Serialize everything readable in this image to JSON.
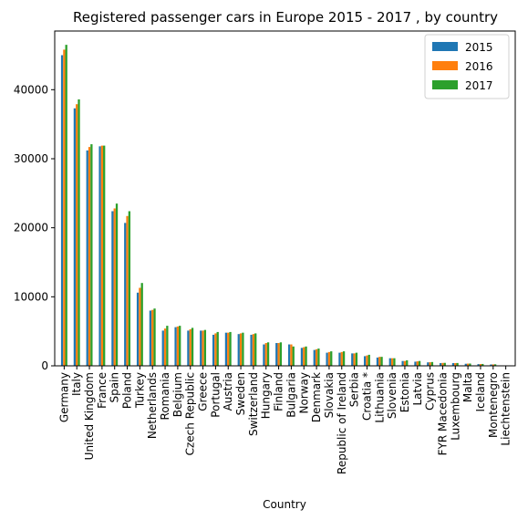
{
  "chart_data": {
    "type": "bar",
    "title": "Registered passenger cars in Europe 2015 - 2017 , by country",
    "xlabel": "Country",
    "ylabel": "",
    "ylim": [
      0,
      48500
    ],
    "yticks": [
      0,
      10000,
      20000,
      30000,
      40000
    ],
    "yticklabels": [
      "0",
      "10000",
      "20000",
      "30000",
      "40000"
    ],
    "grid": false,
    "legend_position": "top-right",
    "categories": [
      "Germany",
      "Italy",
      "United Kingdom",
      "France",
      "Spain",
      "Poland",
      "Turkey",
      "Netherlands",
      "Romania",
      "Belgium",
      "Czech Republic",
      "Greece",
      "Portugal",
      "Austria",
      "Sweden",
      "Switzerland",
      "Hungary",
      "Finland",
      "Bulgaria",
      "Norway",
      "Denmark",
      "Slovakia",
      "Republic of Ireland",
      "Serbia",
      "Croatia *",
      "Lithuania",
      "Slovenia",
      "Estonia",
      "Latvia",
      "Cyprus",
      "FYR Macedonia",
      "Luxembourg",
      "Malta",
      "Iceland",
      "Montenegro",
      "Liechtenstein"
    ],
    "series": [
      {
        "name": "2015",
        "color": "#1f77b4",
        "values": [
          45000,
          37300,
          31200,
          31800,
          22400,
          20700,
          10600,
          8000,
          5100,
          5600,
          5100,
          5100,
          4500,
          4800,
          4600,
          4500,
          3100,
          3300,
          3100,
          2600,
          2300,
          1900,
          1900,
          1800,
          1400,
          1200,
          1100,
          700,
          600,
          500,
          400,
          400,
          300,
          250,
          200,
          30
        ]
      },
      {
        "name": "2016",
        "color": "#ff7f0e",
        "values": [
          45800,
          37900,
          31700,
          31900,
          22800,
          21700,
          11300,
          8100,
          5400,
          5700,
          5300,
          5100,
          4700,
          4800,
          4700,
          4600,
          3300,
          3300,
          3100,
          2700,
          2400,
          2000,
          2000,
          1800,
          1500,
          1300,
          1100,
          700,
          650,
          520,
          420,
          400,
          320,
          260,
          210,
          30
        ]
      },
      {
        "name": "2017",
        "color": "#2ca02c",
        "values": [
          46500,
          38600,
          32100,
          31900,
          23500,
          22400,
          12000,
          8300,
          5800,
          5800,
          5500,
          5200,
          4900,
          4900,
          4800,
          4700,
          3400,
          3400,
          2800,
          2800,
          2500,
          2100,
          2100,
          1900,
          1600,
          1300,
          1100,
          800,
          700,
          550,
          430,
          410,
          330,
          270,
          220,
          30
        ]
      }
    ]
  }
}
